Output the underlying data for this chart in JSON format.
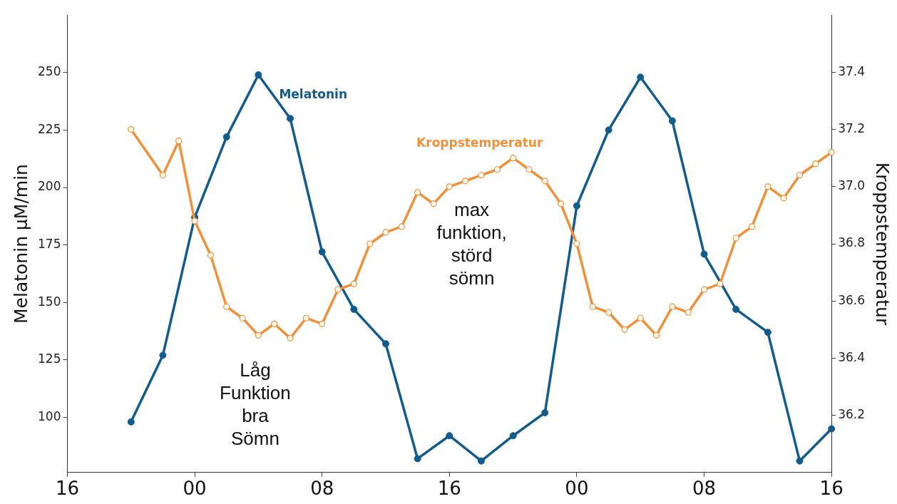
{
  "chart_data": {
    "type": "line",
    "ylabel": "Melatonin µM/min",
    "y2label": "Kroppstemperatur",
    "categories": [
      "16",
      null,
      null,
      null,
      null,
      null,
      null,
      null,
      "00",
      null,
      null,
      null,
      null,
      null,
      null,
      null,
      "08",
      null,
      null,
      null,
      null,
      null,
      null,
      null,
      "16",
      null,
      null,
      null,
      null,
      null,
      null,
      null,
      "00",
      null,
      null,
      null,
      null,
      null,
      null,
      null,
      "08",
      null,
      null,
      null,
      null,
      null,
      null,
      null,
      "16"
    ],
    "ylim": [
      76,
      275
    ],
    "yticks": [
      100,
      125,
      150,
      175,
      200,
      225,
      250
    ],
    "y2lim": [
      36.0,
      37.6
    ],
    "y2ticks": [
      {
        "value": 36.2,
        "label": "36.2"
      },
      {
        "value": 36.4,
        "label": "36.4"
      },
      {
        "value": 36.6,
        "label": "36.6"
      },
      {
        "value": 36.8,
        "label": "36.8"
      },
      {
        "value": 37.0,
        "label": "37.0"
      },
      {
        "value": 37.2,
        "label": "37.2"
      },
      {
        "value": 37.4,
        "label": "37.4"
      }
    ],
    "grid": false,
    "legend": false,
    "marker": "circle",
    "line_style": "solid",
    "series": [
      {
        "name": "Melatonin",
        "color": "#135b8a",
        "values": [
          null,
          null,
          null,
          null,
          98,
          null,
          127,
          null,
          187,
          null,
          222,
          null,
          249,
          null,
          230,
          null,
          172,
          null,
          147,
          null,
          132,
          null,
          82,
          null,
          92,
          null,
          81,
          null,
          92,
          null,
          102,
          null,
          192,
          null,
          225,
          null,
          248,
          null,
          229,
          null,
          171,
          null,
          147,
          null,
          137,
          null,
          81,
          null,
          95
        ]
      },
      {
        "name": "Kroppstemperatur",
        "color": "#f0913a",
        "axis": "y2",
        "values": [
          null,
          null,
          null,
          null,
          37.2,
          null,
          37.04,
          37.16,
          36.88,
          36.76,
          36.58,
          36.54,
          36.48,
          36.52,
          36.47,
          36.54,
          36.52,
          36.64,
          36.66,
          36.8,
          36.84,
          36.86,
          36.98,
          36.94,
          37.0,
          37.02,
          37.04,
          37.06,
          37.1,
          37.06,
          37.02,
          36.94,
          36.8,
          36.58,
          36.56,
          36.5,
          36.54,
          36.48,
          36.58,
          36.56,
          36.64,
          36.66,
          36.82,
          36.86,
          37.0,
          36.96,
          37.04,
          37.08,
          37.12
        ]
      }
    ],
    "annotations": [
      "Låg\nFunktion\nbra\nSömn",
      "max\nfunktion,\nstörd\nsömn"
    ]
  }
}
